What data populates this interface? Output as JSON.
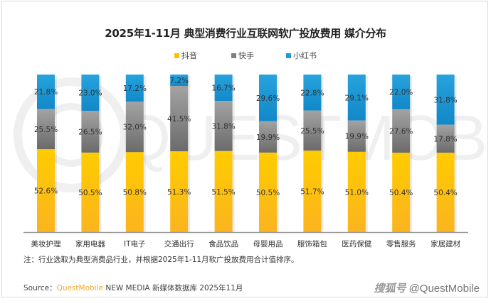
{
  "chart_data": {
    "type": "bar",
    "stacked": true,
    "title": "2025年1-11月 典型消费行业互联网软广投放费用 媒介分布",
    "categories": [
      "美妆护理",
      "家用电器",
      "IT电子",
      "交通出行",
      "食品饮品",
      "母婴用品",
      "服饰箱包",
      "医药保健",
      "零售服务",
      "家居建材"
    ],
    "series": [
      {
        "name": "抖音",
        "color": "#ffc000",
        "values": [
          52.6,
          50.5,
          50.8,
          51.3,
          51.5,
          50.5,
          51.7,
          51.0,
          50.4,
          50.4
        ],
        "labels": [
          "52.6%",
          "50.5%",
          "50.8%",
          "51.3%",
          "51.5%",
          "50.5%",
          "51.7%",
          "51.0%",
          "50.4%",
          "50.4%"
        ]
      },
      {
        "name": "快手",
        "color": "#7f7f7f",
        "values": [
          25.5,
          26.5,
          32.0,
          41.5,
          31.8,
          19.9,
          25.5,
          19.9,
          27.6,
          17.8
        ],
        "labels": [
          "25.5%",
          "26.5%",
          "32.0%",
          "41.5%",
          "31.8%",
          "19.9%",
          "25.5%",
          "19.9%",
          "27.6%",
          "17.8%"
        ]
      },
      {
        "name": "小红书",
        "color": "#1f9ad6",
        "values": [
          21.8,
          23.0,
          17.2,
          7.2,
          16.7,
          29.6,
          22.8,
          29.1,
          22.0,
          31.8
        ],
        "labels": [
          "21.8%",
          "23.0%",
          "17.2%",
          "7.2%",
          "16.7%",
          "29.6%",
          "22.8%",
          "29.1%",
          "22.0%",
          "31.8%"
        ]
      }
    ],
    "ylim": [
      0,
      100
    ],
    "xlabel": "",
    "ylabel": "",
    "grid": false,
    "legend_position": "top"
  },
  "note": "注：行业选取为典型消费品行业，并根据2025年1-11月软广投放费用合计值排序。",
  "source": {
    "prefix": "Source：",
    "brand": "QuestMobile",
    "rest": " NEW MEDIA 新媒体数据库 2025年11月"
  },
  "watermark": {
    "platform": "搜狐号",
    "handle": "@QuestMobile",
    "background_logo": "QUESTMOBILE"
  }
}
